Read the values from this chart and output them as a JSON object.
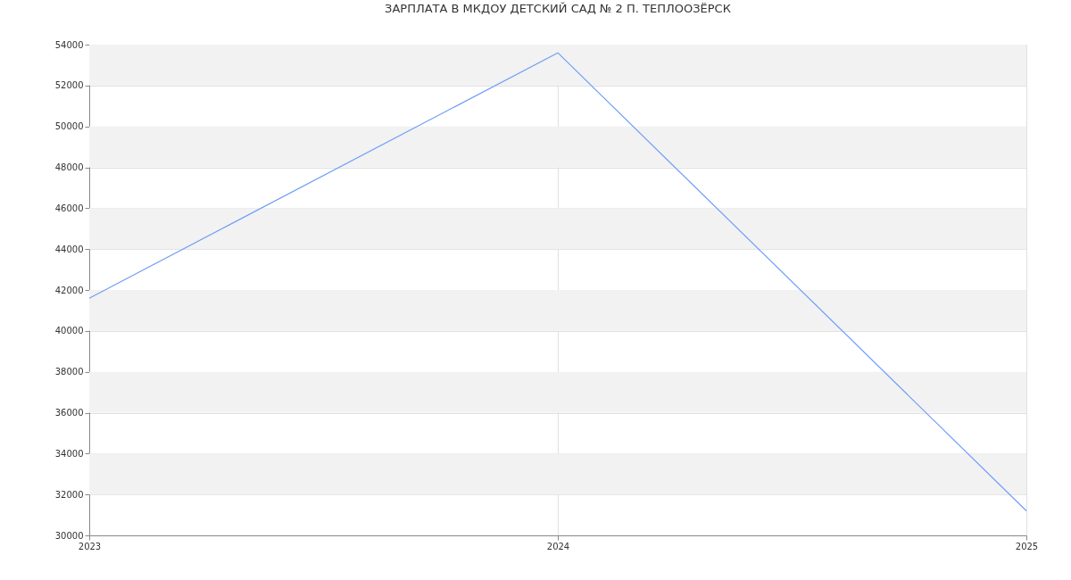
{
  "chart_data": {
    "type": "line",
    "title": "ЗАРПЛАТА В МКДОУ ДЕТСКИЙ САД № 2 П. ТЕПЛООЗЁРСК",
    "x": [
      2023,
      2024,
      2025
    ],
    "series": [
      {
        "color": "#6f9ef8",
        "values": [
          41600,
          53600,
          31200
        ]
      }
    ],
    "xlim": [
      2023,
      2025
    ],
    "xticks": [
      2023,
      2024,
      2025
    ],
    "ylim": [
      30000,
      54000
    ],
    "yticks": [
      30000,
      32000,
      34000,
      36000,
      38000,
      40000,
      42000,
      44000,
      46000,
      48000,
      50000,
      52000,
      54000
    ],
    "grid": true,
    "marker": "none",
    "line_style": "solid"
  }
}
